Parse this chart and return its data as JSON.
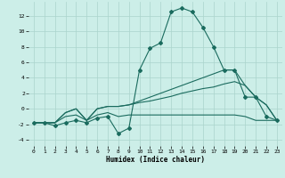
{
  "xlabel": "Humidex (Indice chaleur)",
  "bg_color": "#cceee8",
  "grid_color": "#aad4cc",
  "line_color": "#1a6b5e",
  "xlim": [
    -0.5,
    23.5
  ],
  "ylim": [
    -4.8,
    13.8
  ],
  "yticks": [
    -4,
    -2,
    0,
    2,
    4,
    6,
    8,
    10,
    12
  ],
  "xticks": [
    0,
    1,
    2,
    3,
    4,
    5,
    6,
    7,
    8,
    9,
    10,
    11,
    12,
    13,
    14,
    15,
    16,
    17,
    18,
    19,
    20,
    21,
    22,
    23
  ],
  "series": [
    {
      "x": [
        0,
        1,
        2,
        3,
        4,
        5,
        6,
        7,
        8,
        9,
        10,
        11,
        12,
        13,
        14,
        15,
        16,
        17,
        18,
        19,
        20,
        21,
        22,
        23
      ],
      "y": [
        -1.8,
        -1.8,
        -2.2,
        -1.8,
        -1.5,
        -1.8,
        -1.2,
        -1.0,
        -3.2,
        -2.5,
        5.0,
        7.8,
        8.5,
        12.5,
        13.0,
        12.5,
        10.5,
        8.0,
        5.0,
        5.0,
        1.5,
        1.5,
        -1.0,
        -1.5
      ],
      "marker": "D",
      "markersize": 2.0
    },
    {
      "x": [
        0,
        1,
        2,
        3,
        4,
        5,
        6,
        7,
        8,
        9,
        10,
        11,
        12,
        13,
        14,
        15,
        16,
        17,
        18,
        19,
        20,
        21,
        22,
        23
      ],
      "y": [
        -1.8,
        -1.8,
        -1.8,
        -1.0,
        -0.8,
        -1.5,
        -0.8,
        -0.5,
        -1.0,
        -0.8,
        -0.8,
        -0.8,
        -0.8,
        -0.8,
        -0.8,
        -0.8,
        -0.8,
        -0.8,
        -0.8,
        -0.8,
        -1.0,
        -1.5,
        -1.5,
        -1.5
      ],
      "marker": null
    },
    {
      "x": [
        0,
        1,
        2,
        3,
        4,
        5,
        6,
        7,
        8,
        9,
        10,
        11,
        12,
        13,
        14,
        15,
        16,
        17,
        18,
        19,
        20,
        21,
        22,
        23
      ],
      "y": [
        -1.8,
        -1.8,
        -1.8,
        -0.5,
        0.0,
        -1.5,
        0.0,
        0.3,
        0.3,
        0.5,
        0.8,
        1.0,
        1.3,
        1.6,
        2.0,
        2.3,
        2.6,
        2.8,
        3.2,
        3.5,
        3.0,
        1.5,
        0.5,
        -1.5
      ],
      "marker": null
    },
    {
      "x": [
        0,
        1,
        2,
        3,
        4,
        5,
        6,
        7,
        8,
        9,
        10,
        11,
        12,
        13,
        14,
        15,
        16,
        17,
        18,
        19,
        20,
        21,
        22,
        23
      ],
      "y": [
        -1.8,
        -1.8,
        -1.8,
        -0.5,
        0.0,
        -1.5,
        0.0,
        0.3,
        0.3,
        0.5,
        1.0,
        1.5,
        2.0,
        2.5,
        3.0,
        3.5,
        4.0,
        4.5,
        5.0,
        5.0,
        3.0,
        1.5,
        0.5,
        -1.5
      ],
      "marker": null
    }
  ]
}
